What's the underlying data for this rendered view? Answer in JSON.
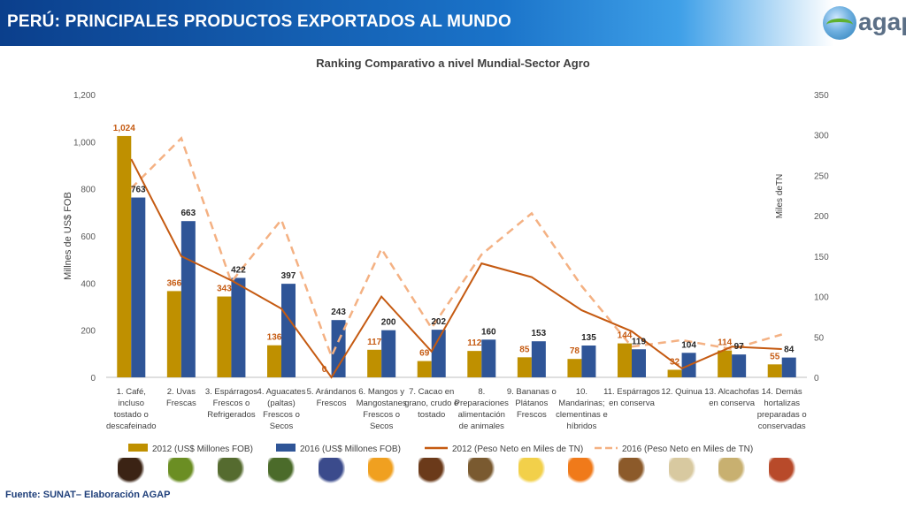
{
  "header": {
    "title": "PERÚ: PRINCIPALES PRODUCTOS EXPORTADOS AL MUNDO",
    "logo_text": "agap"
  },
  "footer": {
    "source": "Fuente: SUNAT– Elaboración AGAP"
  },
  "colors": {
    "bar2012": "#bf9000",
    "bar2016": "#2f5597",
    "line2012": "#c55a11",
    "line2016": "#f4b183",
    "label2012": "#c55a11",
    "label2016": "#262626"
  },
  "chart_data": {
    "type": "bar",
    "title": "Ranking Comparativo a nivel Mundial-Sector Agro",
    "ylabel": "Millnes de US$ FOB",
    "y2label": "Miles deTN",
    "ylim": [
      0,
      1200
    ],
    "y2lim": [
      0,
      350
    ],
    "yticks": [
      "0",
      "200",
      "400",
      "600",
      "800",
      "1,000",
      "1,200"
    ],
    "y2ticks": [
      "0",
      "50",
      "100",
      "150",
      "200",
      "250",
      "300",
      "350"
    ],
    "categories": [
      [
        "1. Café,",
        "incluso",
        "tostado o",
        "descafeinado"
      ],
      [
        "2. Uvas",
        "Frescas"
      ],
      [
        "3. Espárragos",
        "Frescos o",
        "Refrigerados"
      ],
      [
        "4. Aguacates",
        "(paltas)",
        "Frescos o",
        "Secos"
      ],
      [
        "5. Arándanos",
        "Frescos"
      ],
      [
        "6. Mangos y",
        "Mangostanes",
        "Frescos o",
        "Secos"
      ],
      [
        "7. Cacao en",
        "grano, crudo o",
        "tostado"
      ],
      [
        "8.",
        "Preparaciones",
        "alimentación",
        "de animales"
      ],
      [
        "9. Bananas o",
        "Plátanos",
        "Frescos"
      ],
      [
        "10.",
        "Mandarinas;",
        "clementinas e",
        "híbridos"
      ],
      [
        "11. Espárragos",
        "en conserva"
      ],
      [
        "12. Quinua"
      ],
      [
        "13. Alcachofas",
        "en conserva"
      ],
      [
        "14. Demás",
        "hortalizas",
        "preparadas o",
        "conservadas"
      ]
    ],
    "series": [
      {
        "name": "2012 (US$ Millones  FOB)",
        "kind": "bar",
        "axis": "left",
        "values": [
          1024,
          366,
          343,
          136,
          0,
          117,
          69,
          112,
          85,
          78,
          144,
          32,
          114,
          55
        ],
        "labels": [
          "1,024",
          "366",
          "343",
          "136",
          "0",
          "117",
          "69",
          "112",
          "85",
          "78",
          "144",
          "32",
          "114",
          "55"
        ]
      },
      {
        "name": "2016 (US$ Millones  FOB)",
        "kind": "bar",
        "axis": "left",
        "values": [
          763,
          663,
          422,
          397,
          243,
          200,
          202,
          160,
          153,
          135,
          119,
          104,
          97,
          84
        ],
        "labels": [
          "763",
          "663",
          "422",
          "397",
          "243",
          "200",
          "202",
          "160",
          "153",
          "135",
          "119",
          "104",
          "97",
          "84"
        ]
      },
      {
        "name": "2012 (Peso Neto en Miles de TN)",
        "kind": "line",
        "axis": "right",
        "values": [
          270,
          150,
          120,
          85,
          0,
          100,
          32,
          141,
          124,
          83,
          57,
          11,
          38,
          35
        ]
      },
      {
        "name": "2016 (Peso Neto en Miles de TN)",
        "kind": "line-dashed",
        "axis": "right",
        "values": [
          234,
          296,
          118,
          195,
          26,
          159,
          61,
          152,
          203,
          113,
          38,
          46,
          35,
          53
        ]
      }
    ],
    "grid": false,
    "legend": "bottom"
  },
  "icons": [
    "coffee-beans-icon",
    "grapes-icon",
    "asparagus-icon",
    "avocado-icon",
    "blueberries-icon",
    "mango-icon",
    "cacao-icon",
    "animal-feed-icon",
    "banana-icon",
    "mandarin-icon",
    "asparagus-jar-icon",
    "quinoa-icon",
    "artichoke-jar-icon",
    "vegetable-jars-icon"
  ]
}
